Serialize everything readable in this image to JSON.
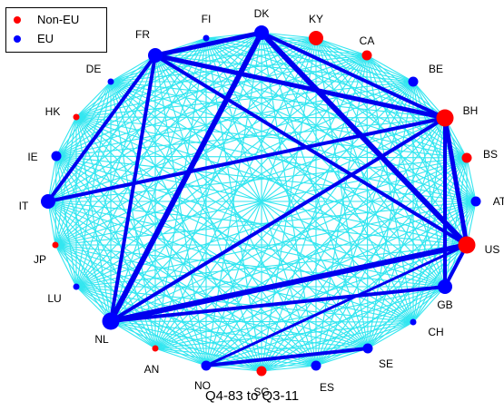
{
  "legend": {
    "entries": [
      {
        "label": "Non-EU",
        "color": "#ff0000"
      },
      {
        "label": "EU",
        "color": "#0000ff"
      }
    ]
  },
  "caption": "Q4-83 to Q3-11",
  "colors": {
    "edge_thin": "#33e6f0",
    "edge_thick": "#0000ee",
    "eu": "#0000ff",
    "non_eu": "#ff0000"
  },
  "nodes": [
    {
      "label": "DK",
      "group": "EU",
      "size": 3
    },
    {
      "label": "KY",
      "group": "Non-EU",
      "size": 3
    },
    {
      "label": "CA",
      "group": "Non-EU",
      "size": 2
    },
    {
      "label": "BE",
      "group": "EU",
      "size": 2
    },
    {
      "label": "BH",
      "group": "Non-EU",
      "size": 4
    },
    {
      "label": "BS",
      "group": "Non-EU",
      "size": 2
    },
    {
      "label": "AT",
      "group": "EU",
      "size": 2
    },
    {
      "label": "US",
      "group": "Non-EU",
      "size": 4
    },
    {
      "label": "GB",
      "group": "EU",
      "size": 3
    },
    {
      "label": "CH",
      "group": "EU",
      "size": 1
    },
    {
      "label": "SE",
      "group": "EU",
      "size": 2
    },
    {
      "label": "ES",
      "group": "EU",
      "size": 2
    },
    {
      "label": "SG",
      "group": "Non-EU",
      "size": 2
    },
    {
      "label": "NO",
      "group": "EU",
      "size": 2
    },
    {
      "label": "AN",
      "group": "Non-EU",
      "size": 1
    },
    {
      "label": "NL",
      "group": "EU",
      "size": 4
    },
    {
      "label": "LU",
      "group": "EU",
      "size": 1
    },
    {
      "label": "JP",
      "group": "Non-EU",
      "size": 1
    },
    {
      "label": "IT",
      "group": "EU",
      "size": 3
    },
    {
      "label": "IE",
      "group": "EU",
      "size": 2
    },
    {
      "label": "HK",
      "group": "Non-EU",
      "size": 1
    },
    {
      "label": "DE",
      "group": "EU",
      "size": 1
    },
    {
      "label": "FR",
      "group": "EU",
      "size": 3
    },
    {
      "label": "FI",
      "group": "EU",
      "size": 1
    }
  ],
  "strong_links": [
    {
      "source": "DK",
      "target": "US",
      "weight": 6
    },
    {
      "source": "DK",
      "target": "NL",
      "weight": 6
    },
    {
      "source": "US",
      "target": "NL",
      "weight": 6
    },
    {
      "source": "FR",
      "target": "DK",
      "weight": 5
    },
    {
      "source": "FR",
      "target": "BH",
      "weight": 5
    },
    {
      "source": "DK",
      "target": "BH",
      "weight": 4
    },
    {
      "source": "BH",
      "target": "US",
      "weight": 5
    },
    {
      "source": "BH",
      "target": "GB",
      "weight": 4
    },
    {
      "source": "FR",
      "target": "US",
      "weight": 4
    },
    {
      "source": "FR",
      "target": "NL",
      "weight": 4
    },
    {
      "source": "FR",
      "target": "IT",
      "weight": 4
    },
    {
      "source": "IT",
      "target": "BH",
      "weight": 4
    },
    {
      "source": "NL",
      "target": "BH",
      "weight": 4
    },
    {
      "source": "NL",
      "target": "GB",
      "weight": 4
    },
    {
      "source": "US",
      "target": "GB",
      "weight": 4
    },
    {
      "source": "NO",
      "target": "SE",
      "weight": 4
    },
    {
      "source": "US",
      "target": "NO",
      "weight": 3
    }
  ]
}
